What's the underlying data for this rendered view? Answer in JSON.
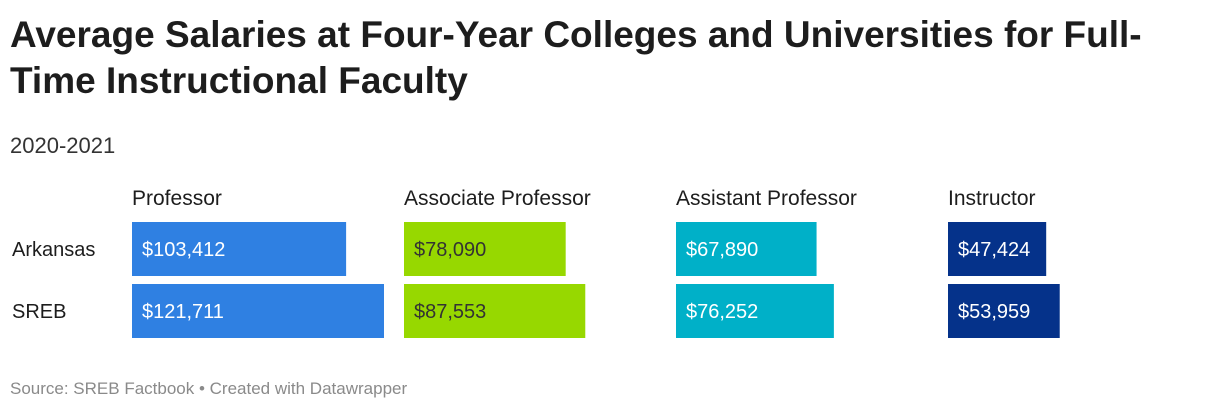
{
  "title": "Average Salaries at Four-Year Colleges and Universities for Full-Time Instructional Faculty",
  "subtitle": "2020-2021",
  "source": "Source: SREB Factbook • Created with Datawrapper",
  "chart_data": {
    "type": "bar",
    "orientation": "horizontal",
    "layout": "small-multiples",
    "categories": [
      "Arkansas",
      "SREB"
    ],
    "panels": [
      {
        "name": "Professor",
        "color": "#2f80e2",
        "values": [
          103412,
          121711
        ],
        "labels": [
          "$103,412",
          "$121,711"
        ]
      },
      {
        "name": "Associate Professor",
        "color": "#97d800",
        "values": [
          78090,
          87553
        ],
        "labels": [
          "$78,090",
          "$87,553"
        ]
      },
      {
        "name": "Assistant Professor",
        "color": "#00b0c8",
        "values": [
          67890,
          76252
        ],
        "labels": [
          "$67,890",
          "$76,252"
        ]
      },
      {
        "name": "Instructor",
        "color": "#05328a",
        "values": [
          47424,
          53959
        ],
        "labels": [
          "$47,424",
          "$53,959"
        ]
      }
    ],
    "xlim": [
      0,
      121711
    ],
    "label_colors": {
      "inside_light": "#ffffff",
      "inside_dark": "#333333",
      "outside": "#1d1d1d"
    }
  }
}
